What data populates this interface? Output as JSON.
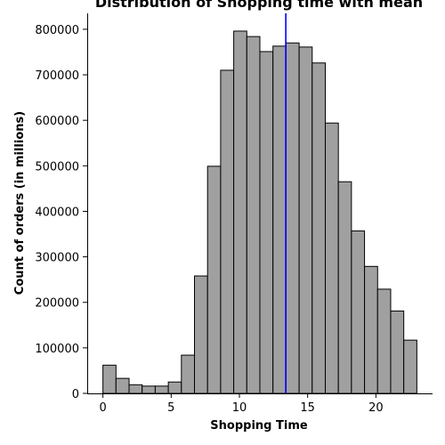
{
  "chart_data": {
    "type": "bar",
    "title": "Distribution of Shopping time with mean",
    "xlabel": "Shopping Time",
    "ylabel": "Count of orders (in millions)",
    "xlim": [
      -1.15,
      24.15
    ],
    "ylim": [
      0,
      835000
    ],
    "x_ticks": [
      0,
      5,
      10,
      15,
      20
    ],
    "y_ticks": [
      0,
      100000,
      200000,
      300000,
      400000,
      500000,
      600000,
      700000,
      800000
    ],
    "bin_edges": [
      0,
      0.958,
      1.917,
      2.875,
      3.833,
      4.792,
      5.75,
      6.708,
      7.667,
      8.625,
      9.583,
      10.542,
      11.5,
      12.458,
      13.417,
      14.375,
      15.333,
      16.292,
      17.25,
      18.208,
      19.167,
      20.125,
      21.083,
      22.042,
      23
    ],
    "values": [
      62000,
      33000,
      19000,
      16000,
      16000,
      25000,
      84000,
      258000,
      499000,
      710000,
      796000,
      784000,
      751000,
      763000,
      770000,
      761000,
      726000,
      594000,
      465000,
      357000,
      279000,
      229000,
      181000,
      117000
    ],
    "mean": 13.4,
    "colors": {
      "bar_fill": "#a0a0a0",
      "bar_edge": "#000000",
      "mean_line": "#0000ff"
    },
    "grid": false,
    "legend": "none"
  }
}
